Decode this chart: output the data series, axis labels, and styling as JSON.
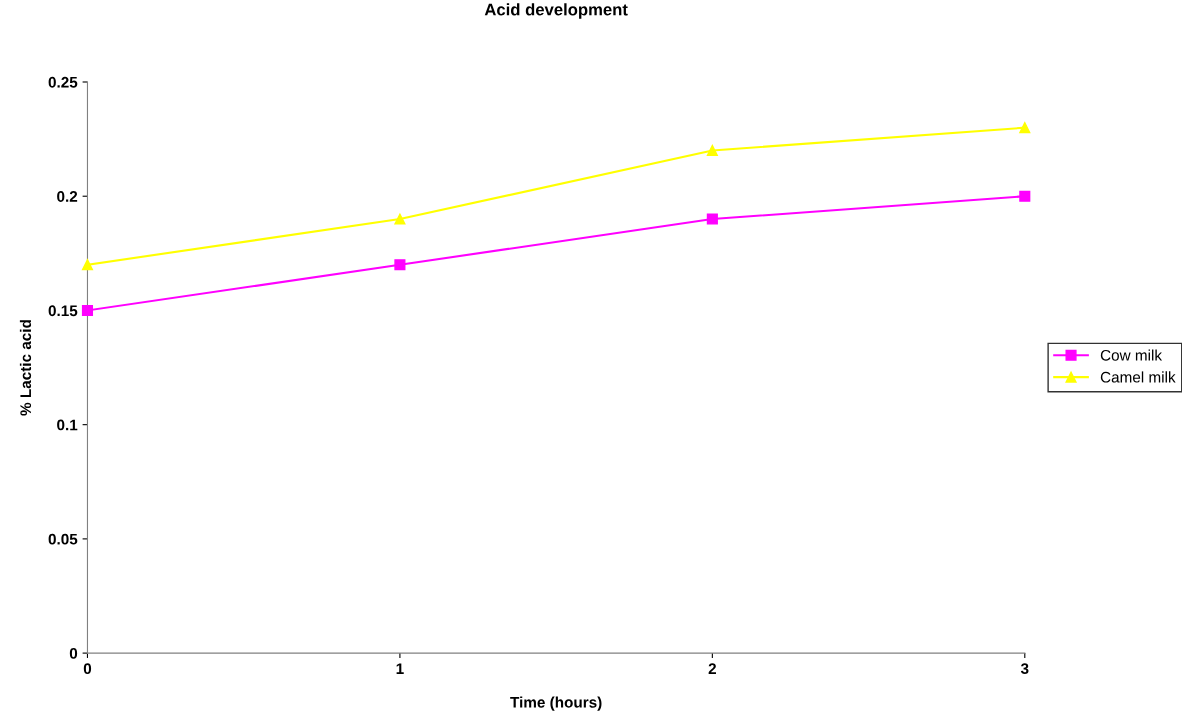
{
  "chart_data": {
    "type": "line",
    "title": "Acid development",
    "xlabel": "Time (hours)",
    "ylabel": "% Lactic acid",
    "x": [
      0,
      1,
      2,
      3
    ],
    "series": [
      {
        "name": "Cow milk",
        "color": "#ff00ff",
        "marker": "square",
        "values": [
          0.15,
          0.17,
          0.19,
          0.2
        ]
      },
      {
        "name": "Camel milk",
        "color": "#ffff00",
        "marker": "triangle",
        "values": [
          0.17,
          0.19,
          0.22,
          0.23
        ]
      }
    ],
    "xlim": [
      0,
      3
    ],
    "xticks": [
      0,
      1,
      2,
      3
    ],
    "ylim": [
      0,
      0.25
    ],
    "yticks": [
      0,
      0.05,
      0.1,
      0.15,
      0.2,
      0.25
    ],
    "grid": false,
    "legend": "right",
    "line_style": "solid"
  }
}
